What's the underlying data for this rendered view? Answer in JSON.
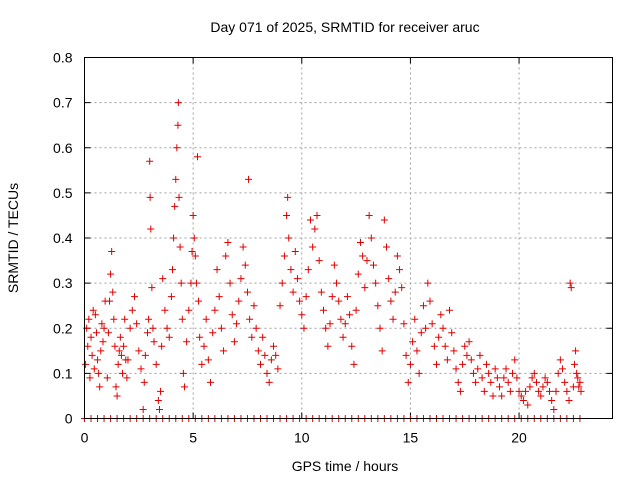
{
  "chart_data": {
    "type": "scatter",
    "title": "Day 071 of 2025, SRMTID for receiver aruc",
    "xlabel": "GPS time / hours",
    "ylabel": "SRMTID / TECUs",
    "xlim": [
      0,
      24.3
    ],
    "ylim": [
      0,
      0.8
    ],
    "x_ticks": [
      0,
      5,
      10,
      15,
      20
    ],
    "y_ticks": [
      0,
      0.1,
      0.2,
      0.3,
      0.4,
      0.5,
      0.6,
      0.7,
      0.8
    ],
    "x_tick_labels": [
      "0",
      "5",
      "10",
      "15",
      "20"
    ],
    "y_tick_labels": [
      "0",
      "0.1",
      "0.2",
      "0.3",
      "0.4",
      "0.5",
      "0.6",
      "0.7",
      "0.8"
    ],
    "grid": true,
    "marker": "+",
    "series": [
      {
        "name": "SRMTID",
        "color": "#e00000",
        "points": [
          [
            0.05,
            0.12
          ],
          [
            0.1,
            0.2
          ],
          [
            0.15,
            0.16
          ],
          [
            0.2,
            0.22
          ],
          [
            0.25,
            0.09
          ],
          [
            0.3,
            0.18
          ],
          [
            0.35,
            0.14
          ],
          [
            0.4,
            0.24
          ],
          [
            0.45,
            0.11
          ],
          [
            0.5,
            0.23
          ],
          [
            0.55,
            0.19
          ],
          [
            0.6,
            0.13
          ],
          [
            0.65,
            0.1
          ],
          [
            0.7,
            0.07
          ],
          [
            0.75,
            0.15
          ],
          [
            0.8,
            0.21
          ],
          [
            0.85,
            0.17
          ],
          [
            0.9,
            0.2
          ],
          [
            0.95,
            0.26
          ],
          [
            1.05,
            0.09
          ],
          [
            1.1,
            0.19
          ],
          [
            1.15,
            0.26
          ],
          [
            1.2,
            0.32
          ],
          [
            1.25,
            0.37
          ],
          [
            1.3,
            0.28
          ],
          [
            1.35,
            0.22
          ],
          [
            1.4,
            0.16
          ],
          [
            1.45,
            0.07
          ],
          [
            1.5,
            0.05
          ],
          [
            1.55,
            0.12
          ],
          [
            1.6,
            0.15
          ],
          [
            1.65,
            0.18
          ],
          [
            1.7,
            0.14
          ],
          [
            1.75,
            0.1
          ],
          [
            1.8,
            0.16
          ],
          [
            1.85,
            0.22
          ],
          [
            1.9,
            0.13
          ],
          [
            1.95,
            0.09
          ],
          [
            2.0,
            0.13
          ],
          [
            2.1,
            0.2
          ],
          [
            2.2,
            0.24
          ],
          [
            2.3,
            0.27
          ],
          [
            2.4,
            0.21
          ],
          [
            2.5,
            0.15
          ],
          [
            2.6,
            0.11
          ],
          [
            2.7,
            0.02
          ],
          [
            2.75,
            0.08
          ],
          [
            2.8,
            0.14
          ],
          [
            2.9,
            0.19
          ],
          [
            2.95,
            0.22
          ],
          [
            3.0,
            0.57
          ],
          [
            3.02,
            0.49
          ],
          [
            3.05,
            0.42
          ],
          [
            3.1,
            0.29
          ],
          [
            3.15,
            0.2
          ],
          [
            3.2,
            0.17
          ],
          [
            3.3,
            0.12
          ],
          [
            3.4,
            0.04
          ],
          [
            3.45,
            0.02
          ],
          [
            3.5,
            0.06
          ],
          [
            3.55,
            0.16
          ],
          [
            3.6,
            0.31
          ],
          [
            3.7,
            0.24
          ],
          [
            3.8,
            0.2
          ],
          [
            3.9,
            0.18
          ],
          [
            4.0,
            0.27
          ],
          [
            4.05,
            0.33
          ],
          [
            4.1,
            0.4
          ],
          [
            4.15,
            0.47
          ],
          [
            4.2,
            0.53
          ],
          [
            4.25,
            0.6
          ],
          [
            4.3,
            0.65
          ],
          [
            4.32,
            0.7
          ],
          [
            4.35,
            0.49
          ],
          [
            4.4,
            0.38
          ],
          [
            4.45,
            0.3
          ],
          [
            4.5,
            0.22
          ],
          [
            4.55,
            0.1
          ],
          [
            4.6,
            0.07
          ],
          [
            4.7,
            0.17
          ],
          [
            4.8,
            0.24
          ],
          [
            4.9,
            0.3
          ],
          [
            4.95,
            0.37
          ],
          [
            5.0,
            0.45
          ],
          [
            5.05,
            0.4
          ],
          [
            5.1,
            0.36
          ],
          [
            5.15,
            0.3
          ],
          [
            5.2,
            0.58
          ],
          [
            5.25,
            0.26
          ],
          [
            5.3,
            0.18
          ],
          [
            5.4,
            0.12
          ],
          [
            5.5,
            0.16
          ],
          [
            5.6,
            0.22
          ],
          [
            5.7,
            0.13
          ],
          [
            5.8,
            0.08
          ],
          [
            5.9,
            0.19
          ],
          [
            6.0,
            0.24
          ],
          [
            6.1,
            0.33
          ],
          [
            6.2,
            0.27
          ],
          [
            6.3,
            0.2
          ],
          [
            6.4,
            0.15
          ],
          [
            6.5,
            0.36
          ],
          [
            6.6,
            0.39
          ],
          [
            6.7,
            0.3
          ],
          [
            6.8,
            0.23
          ],
          [
            6.9,
            0.17
          ],
          [
            7.0,
            0.21
          ],
          [
            7.1,
            0.26
          ],
          [
            7.2,
            0.31
          ],
          [
            7.3,
            0.38
          ],
          [
            7.4,
            0.34
          ],
          [
            7.5,
            0.28
          ],
          [
            7.55,
            0.53
          ],
          [
            7.6,
            0.22
          ],
          [
            7.7,
            0.18
          ],
          [
            7.8,
            0.25
          ],
          [
            7.9,
            0.2
          ],
          [
            8.0,
            0.15
          ],
          [
            8.1,
            0.12
          ],
          [
            8.2,
            0.18
          ],
          [
            8.3,
            0.14
          ],
          [
            8.4,
            0.1
          ],
          [
            8.5,
            0.08
          ],
          [
            8.6,
            0.13
          ],
          [
            8.7,
            0.16
          ],
          [
            8.8,
            0.14
          ],
          [
            8.9,
            0.11
          ],
          [
            9.0,
            0.25
          ],
          [
            9.1,
            0.3
          ],
          [
            9.2,
            0.36
          ],
          [
            9.3,
            0.45
          ],
          [
            9.35,
            0.49
          ],
          [
            9.4,
            0.4
          ],
          [
            9.5,
            0.33
          ],
          [
            9.6,
            0.28
          ],
          [
            9.7,
            0.37
          ],
          [
            9.8,
            0.31
          ],
          [
            9.9,
            0.26
          ],
          [
            10.0,
            0.23
          ],
          [
            10.1,
            0.2
          ],
          [
            10.2,
            0.27
          ],
          [
            10.3,
            0.33
          ],
          [
            10.4,
            0.44
          ],
          [
            10.5,
            0.38
          ],
          [
            10.6,
            0.42
          ],
          [
            10.7,
            0.45
          ],
          [
            10.8,
            0.35
          ],
          [
            10.9,
            0.28
          ],
          [
            11.0,
            0.24
          ],
          [
            11.1,
            0.2
          ],
          [
            11.2,
            0.16
          ],
          [
            11.3,
            0.21
          ],
          [
            11.4,
            0.27
          ],
          [
            11.5,
            0.34
          ],
          [
            11.6,
            0.3
          ],
          [
            11.7,
            0.26
          ],
          [
            11.8,
            0.22
          ],
          [
            11.9,
            0.18
          ],
          [
            12.0,
            0.21
          ],
          [
            12.1,
            0.27
          ],
          [
            12.2,
            0.23
          ],
          [
            12.3,
            0.16
          ],
          [
            12.4,
            0.12
          ],
          [
            12.5,
            0.24
          ],
          [
            12.6,
            0.32
          ],
          [
            12.7,
            0.39
          ],
          [
            12.8,
            0.36
          ],
          [
            12.9,
            0.29
          ],
          [
            13.0,
            0.35
          ],
          [
            13.1,
            0.45
          ],
          [
            13.2,
            0.4
          ],
          [
            13.3,
            0.34
          ],
          [
            13.4,
            0.3
          ],
          [
            13.5,
            0.25
          ],
          [
            13.6,
            0.2
          ],
          [
            13.7,
            0.15
          ],
          [
            13.8,
            0.44
          ],
          [
            13.9,
            0.38
          ],
          [
            14.0,
            0.31
          ],
          [
            14.1,
            0.26
          ],
          [
            14.2,
            0.22
          ],
          [
            14.3,
            0.28
          ],
          [
            14.4,
            0.36
          ],
          [
            14.5,
            0.33
          ],
          [
            14.6,
            0.29
          ],
          [
            14.7,
            0.21
          ],
          [
            14.8,
            0.14
          ],
          [
            14.9,
            0.08
          ],
          [
            15.0,
            0.12
          ],
          [
            15.1,
            0.17
          ],
          [
            15.2,
            0.22
          ],
          [
            15.3,
            0.15
          ],
          [
            15.4,
            0.1
          ],
          [
            15.5,
            0.19
          ],
          [
            15.6,
            0.25
          ],
          [
            15.7,
            0.2
          ],
          [
            15.8,
            0.3
          ],
          [
            15.9,
            0.26
          ],
          [
            16.0,
            0.21
          ],
          [
            16.1,
            0.16
          ],
          [
            16.2,
            0.12
          ],
          [
            16.3,
            0.18
          ],
          [
            16.4,
            0.23
          ],
          [
            16.5,
            0.2
          ],
          [
            16.6,
            0.16
          ],
          [
            16.7,
            0.13
          ],
          [
            16.8,
            0.24
          ],
          [
            16.9,
            0.19
          ],
          [
            17.0,
            0.15
          ],
          [
            17.1,
            0.11
          ],
          [
            17.2,
            0.08
          ],
          [
            17.3,
            0.06
          ],
          [
            17.4,
            0.12
          ],
          [
            17.5,
            0.16
          ],
          [
            17.6,
            0.14
          ],
          [
            17.7,
            0.17
          ],
          [
            17.8,
            0.13
          ],
          [
            17.9,
            0.1
          ],
          [
            18.0,
            0.08
          ],
          [
            18.1,
            0.11
          ],
          [
            18.2,
            0.14
          ],
          [
            18.3,
            0.09
          ],
          [
            18.4,
            0.06
          ],
          [
            18.5,
            0.12
          ],
          [
            18.6,
            0.1
          ],
          [
            18.7,
            0.08
          ],
          [
            18.8,
            0.05
          ],
          [
            18.9,
            0.11
          ],
          [
            19.0,
            0.09
          ],
          [
            19.1,
            0.07
          ],
          [
            19.2,
            0.05
          ],
          [
            19.3,
            0.09
          ],
          [
            19.4,
            0.11
          ],
          [
            19.5,
            0.08
          ],
          [
            19.6,
            0.06
          ],
          [
            19.7,
            0.1
          ],
          [
            19.8,
            0.13
          ],
          [
            19.9,
            0.09
          ],
          [
            20.0,
            0.06
          ],
          [
            20.1,
            0.05
          ],
          [
            20.2,
            0.04
          ],
          [
            20.3,
            0.06
          ],
          [
            20.4,
            0.03
          ],
          [
            20.5,
            0.07
          ],
          [
            20.6,
            0.09
          ],
          [
            20.7,
            0.1
          ],
          [
            20.8,
            0.08
          ],
          [
            20.9,
            0.06
          ],
          [
            21.0,
            0.05
          ],
          [
            21.1,
            0.07
          ],
          [
            21.2,
            0.09
          ],
          [
            21.3,
            0.08
          ],
          [
            21.4,
            0.06
          ],
          [
            21.5,
            0.04
          ],
          [
            21.6,
            0.02
          ],
          [
            21.7,
            0.06
          ],
          [
            21.8,
            0.1
          ],
          [
            21.9,
            0.13
          ],
          [
            22.0,
            0.11
          ],
          [
            22.1,
            0.08
          ],
          [
            22.2,
            0.06
          ],
          [
            22.3,
            0.04
          ],
          [
            22.35,
            0.3
          ],
          [
            22.4,
            0.29
          ],
          [
            22.5,
            0.07
          ],
          [
            22.55,
            0.12
          ],
          [
            22.6,
            0.15
          ],
          [
            22.65,
            0.1
          ],
          [
            22.7,
            0.09
          ],
          [
            22.75,
            0.07
          ],
          [
            22.8,
            0.08
          ],
          [
            22.85,
            0.06
          ]
        ],
        "zero_x": [
          0.0,
          0.3,
          0.6,
          0.9,
          1.2,
          1.5,
          1.8,
          2.1,
          2.4,
          2.7,
          3.0,
          3.3,
          3.6,
          3.9,
          4.2,
          4.5,
          4.8,
          5.1,
          5.4,
          5.7,
          6.0,
          6.3,
          6.6,
          6.9,
          7.2,
          7.5,
          7.8,
          8.1,
          8.4,
          8.7,
          9.0,
          9.3,
          9.6,
          9.9,
          10.2,
          10.5,
          10.8,
          11.1,
          11.4,
          11.7,
          12.0,
          12.3,
          12.6,
          12.9,
          13.2,
          13.5,
          13.8,
          14.1,
          14.4,
          14.7,
          15.0,
          15.3,
          15.6,
          15.9,
          16.2,
          16.5,
          16.8,
          17.1,
          17.4,
          17.7,
          18.0,
          18.3,
          18.6,
          18.9,
          19.2,
          19.5,
          19.8,
          20.1,
          20.4,
          20.7,
          21.0,
          21.3,
          21.6,
          21.9,
          22.2,
          22.5,
          22.8
        ]
      }
    ]
  }
}
